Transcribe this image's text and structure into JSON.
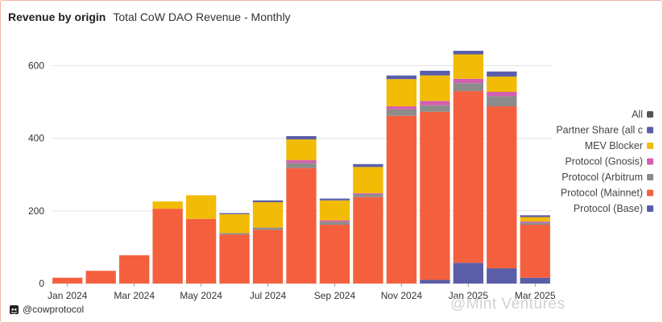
{
  "header": {
    "title": "Revenue by origin",
    "subtitle": "Total CoW DAO Revenue - Monthly"
  },
  "footer": {
    "handle": "@cowprotocol",
    "icon": "cow-logo-icon"
  },
  "watermark": {
    "text": "@Mint Ventures"
  },
  "colors": {
    "All": "#555555",
    "Partner Share (all c": "#5a5ea8",
    "MEV Blocker": "#f2bb05",
    "Protocol (Gnosis)": "#d35fb0",
    "Protocol (Arbitrum": "#8c8c8c",
    "Protocol (Mainnet)": "#f4603e",
    "Protocol (Base)": "#5a5ea8"
  },
  "chart_data": {
    "type": "bar",
    "stacked": true,
    "title": "Total CoW DAO Revenue - Monthly",
    "categories": [
      "Jan 2024",
      "Feb 2024",
      "Mar 2024",
      "Apr 2024",
      "May 2024",
      "Jun 2024",
      "Jul 2024",
      "Aug 2024",
      "Sep 2024",
      "Oct 2024",
      "Nov 2024",
      "Dec 2024",
      "Jan 2025",
      "Feb 2025",
      "Mar 2025"
    ],
    "x_tick_labels": [
      "Jan 2024",
      "Mar 2024",
      "May 2024",
      "Jul 2024",
      "Sep 2024",
      "Nov 2024",
      "Jan 2025",
      "Mar 2025"
    ],
    "y_ticks": [
      0,
      200,
      400,
      600
    ],
    "ylim": [
      0,
      650
    ],
    "grid": true,
    "legend_position": "right",
    "legend": [
      "All",
      "Partner Share (all c",
      "MEV Blocker",
      "Protocol (Gnosis)",
      "Protocol (Arbitrum",
      "Protocol (Mainnet)",
      "Protocol (Base)"
    ],
    "series": [
      {
        "name": "Protocol (Base)",
        "values": [
          0,
          0,
          0,
          0,
          0,
          0,
          0,
          0,
          0,
          0,
          0,
          10,
          57,
          42,
          16
        ]
      },
      {
        "name": "Protocol (Mainnet)",
        "values": [
          16,
          35,
          78,
          206,
          178,
          135,
          148,
          318,
          162,
          238,
          462,
          463,
          473,
          446,
          146
        ]
      },
      {
        "name": "Protocol (Arbitrum",
        "values": [
          0,
          0,
          0,
          0,
          0,
          4,
          6,
          14,
          8,
          8,
          18,
          18,
          22,
          28,
          6
        ]
      },
      {
        "name": "Protocol (Gnosis)",
        "values": [
          0,
          0,
          0,
          0,
          0,
          0,
          0,
          8,
          4,
          3,
          8,
          12,
          12,
          12,
          3
        ]
      },
      {
        "name": "MEV Blocker",
        "values": [
          0,
          0,
          0,
          20,
          65,
          52,
          70,
          57,
          55,
          72,
          75,
          70,
          67,
          42,
          12
        ]
      },
      {
        "name": "Partner Share (all c",
        "values": [
          0,
          0,
          0,
          0,
          0,
          3,
          5,
          9,
          5,
          8,
          10,
          13,
          10,
          14,
          5
        ]
      }
    ]
  }
}
